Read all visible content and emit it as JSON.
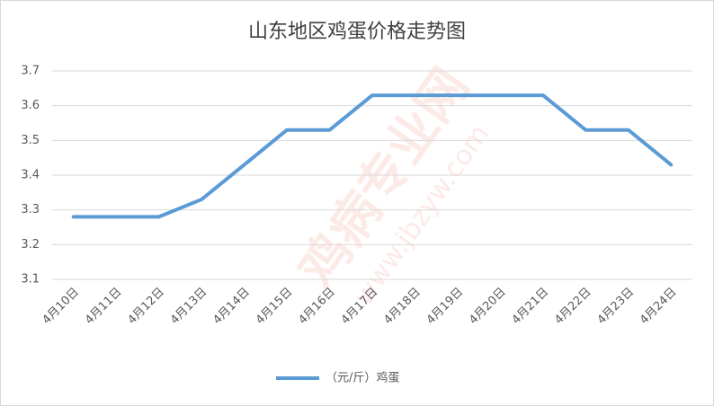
{
  "chart_data": {
    "type": "line",
    "title": "山东地区鸡蛋价格走势图",
    "categories": [
      "4月10日",
      "4月11日",
      "4月12日",
      "4月13日",
      "4月14日",
      "4月15日",
      "4月16日",
      "4月17日",
      "4月18日",
      "4月19日",
      "4月20日",
      "4月21日",
      "4月22日",
      "4月23日",
      "4月24日"
    ],
    "series": [
      {
        "name": "（元/斤）鸡蛋",
        "color": "#5b9bd5",
        "values": [
          3.28,
          3.28,
          3.28,
          3.33,
          3.43,
          3.53,
          3.53,
          3.63,
          3.63,
          3.63,
          3.63,
          3.63,
          3.53,
          3.53,
          3.43
        ]
      }
    ],
    "ylim": [
      3.1,
      3.7
    ],
    "yticks": [
      {
        "value": 3.1,
        "label": "3.1"
      },
      {
        "value": 3.2,
        "label": "3.2"
      },
      {
        "value": 3.3,
        "label": "3.3"
      },
      {
        "value": 3.4,
        "label": "3.4"
      },
      {
        "value": 3.5,
        "label": "3.5"
      },
      {
        "value": 3.6,
        "label": "3.6"
      },
      {
        "value": 3.7,
        "label": "3.7"
      }
    ],
    "grid": true,
    "legend": "bottom",
    "watermark": [
      "鸡病专业网",
      "www.jbzyw.com"
    ]
  }
}
